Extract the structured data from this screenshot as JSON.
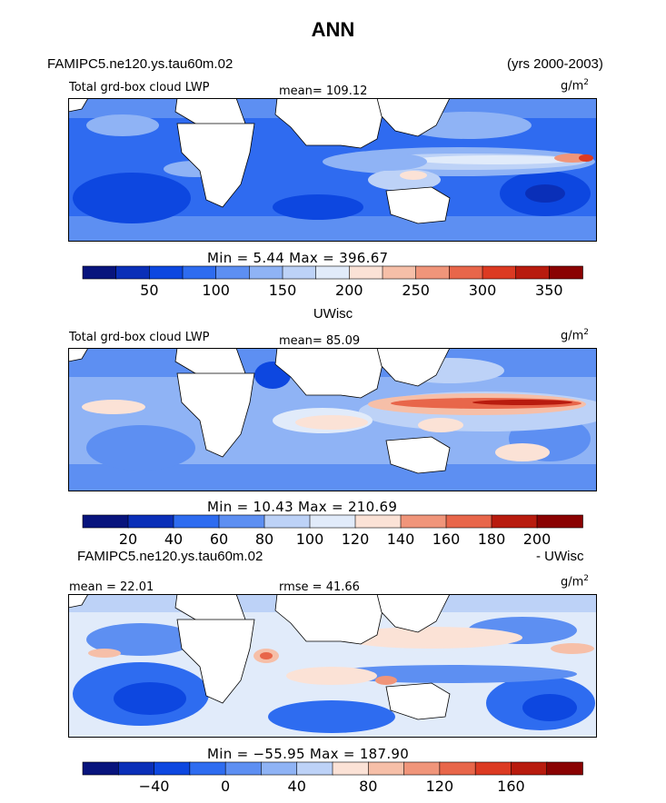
{
  "title": "ANN",
  "header": {
    "left": "FAMIPC5.ne120.ys.tau60m.02",
    "right": "(yrs 2000-2003)"
  },
  "panels": [
    {
      "label": "Total grd-box cloud LWP",
      "mean_text": "mean=  109.12",
      "units_base": "g/m",
      "units_exp": "2",
      "minmax_text": "Min =    5.44  Max  =  396.67",
      "tick_labels": [
        "50",
        "100",
        "150",
        "200",
        "250",
        "300",
        "350"
      ]
    },
    {
      "caption": "UWisc",
      "label": "Total grd-box cloud LWP",
      "mean_text": "mean=  85.09",
      "units_base": "g/m",
      "units_exp": "2",
      "minmax_text": "Min =   10.43  Max  =  210.69",
      "tick_labels": [
        "20",
        "40",
        "60",
        "80",
        "100",
        "120",
        "140",
        "160",
        "180",
        "200"
      ]
    },
    {
      "caption_left": "FAMIPC5.ne120.ys.tau60m.02",
      "caption_right": "- UWisc",
      "mean_text": "mean =  22.01",
      "rmse_text": "rmse =  41.66",
      "units_base": "g/m",
      "units_exp": "2",
      "minmax_text": "Min =  −55.95  Max  =  187.90",
      "tick_labels": [
        "−40",
        "0",
        "40",
        "80",
        "120",
        "160"
      ]
    }
  ],
  "chart_data": [
    {
      "type": "heatmap",
      "title": "Total grd-box cloud LWP",
      "mean": 109.12,
      "min": 5.44,
      "max": 396.67,
      "units": "g/m2",
      "colorbar_ticks": [
        50,
        100,
        150,
        200,
        250,
        300,
        350
      ]
    },
    {
      "type": "heatmap",
      "title": "Total grd-box cloud LWP",
      "mean": 85.09,
      "min": 10.43,
      "max": 210.69,
      "units": "g/m2",
      "colorbar_ticks": [
        20,
        40,
        60,
        80,
        100,
        120,
        140,
        160,
        180,
        200
      ]
    },
    {
      "type": "heatmap",
      "mean": 22.01,
      "rmse": 41.66,
      "min": -55.95,
      "max": 187.9,
      "units": "g/m2",
      "colorbar_ticks": [
        -40,
        0,
        40,
        80,
        120,
        160
      ]
    }
  ],
  "colors": {
    "scale": [
      "#08147d",
      "#0a2fb8",
      "#0d47e0",
      "#2e6cf0",
      "#5d8ff2",
      "#8fb3f5",
      "#bdd2f7",
      "#e1ebfa",
      "#fbe2d6",
      "#f6bfa8",
      "#f0957a",
      "#e8664a",
      "#dc3a22",
      "#b81b0e",
      "#8a0202"
    ]
  }
}
